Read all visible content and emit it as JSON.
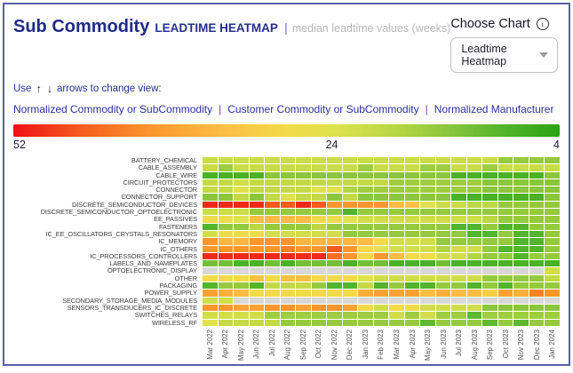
{
  "header": {
    "title": "Sub Commodity",
    "subtitle": "LEADTIME HEATMAP",
    "separator": "|",
    "description": "median leadtime values (weeks)",
    "choose_chart_label": "Choose Chart",
    "dropdown_value": "Leadtime Heatmap"
  },
  "icons": {
    "info_glyph": "i"
  },
  "view_controls": {
    "hint_prefix": "Use",
    "up_arrow": "↑",
    "down_arrow": "↓",
    "hint_suffix": "arrows to change view:",
    "separator": "|",
    "views": [
      "Normalized Commodity or SubCommodity",
      "Customer Commodity or SubCommodity",
      "Normalized Manufacturer"
    ]
  },
  "colorbar": {
    "min_label": "52",
    "mid_label": "24",
    "max_label": "4"
  },
  "chart_data": {
    "type": "heatmap",
    "title": "Sub Commodity LEADTIME HEATMAP",
    "unit": "median leadtime (weeks)",
    "scale": {
      "worst": 52,
      "mid": 24,
      "best": 4
    },
    "no_data_color": "#d8d8d8",
    "color_stops": [
      {
        "value": 52,
        "color": "#ed1117"
      },
      {
        "value": 46,
        "color": "#f55b1e"
      },
      {
        "value": 40,
        "color": "#f9962c"
      },
      {
        "value": 34,
        "color": "#fbbc43"
      },
      {
        "value": 28,
        "color": "#f2da49"
      },
      {
        "value": 24,
        "color": "#dfe24c"
      },
      {
        "value": 19,
        "color": "#bcd844"
      },
      {
        "value": 14,
        "color": "#8cc63d"
      },
      {
        "value": 9,
        "color": "#53b42d"
      },
      {
        "value": 4,
        "color": "#2aa311"
      }
    ],
    "columns": [
      "Mar 2022",
      "Apr 2022",
      "May 2022",
      "Jun 2022",
      "Jul 2022",
      "Aug 2022",
      "Sep 2022",
      "Oct 2022",
      "Nov 2022",
      "Dec 2022",
      "Jan 2023",
      "Feb 2023",
      "Mar 2023",
      "Apr 2023",
      "May 2023",
      "Jun 2023",
      "Jul 2023",
      "Aug 2023",
      "Sep 2023",
      "Oct 2023",
      "Nov 2023",
      "Dec 2023",
      "Jan 2024"
    ],
    "rows": [
      "BATTERY_CHEMICAL",
      "CABLE_ASSEMBLY",
      "CABLE_WIRE",
      "CIRCUIT_PROTECTORS",
      "CONNECTOR",
      "CONNECTOR_SUPPORT",
      "DISCRETE_SEMICONDUCTOR_DEVICES",
      "DISCRETE_SEMICONDUCTOR_OPTOELECTRONIC",
      "EE_PASSIVES",
      "FASTENERS",
      "IC_EE_OSCILLATORS_CRYSTALS_RESONATORS",
      "IC_MEMORY",
      "IC_OTHERS",
      "IC_PROCESSORS_CONTROLLERS",
      "LABELS_AND_NAMEPLATES",
      "OPTOELECTRONIC_DISPLAY",
      "OTHER",
      "PACKAGING",
      "POWER_SUPPLY",
      "SECONDARY_STORAGE_MEDIA_MODULES",
      "SENSORS_TRANSDUCERS_IC_DISCRETE",
      "SWITCHES_RELAYS",
      "WIRELESS_RF"
    ],
    "values": [
      [
        21,
        21,
        21,
        21,
        21,
        21,
        21,
        21,
        21,
        21,
        21,
        21,
        21,
        21,
        21,
        21,
        21,
        21,
        21,
        15,
        15,
        15,
        15
      ],
      [
        21,
        16,
        21,
        21,
        21,
        21,
        21,
        21,
        21,
        21,
        16,
        21,
        21,
        21,
        16,
        16,
        21,
        21,
        16,
        21,
        21,
        21,
        21
      ],
      [
        8,
        8,
        8,
        8,
        14,
        14,
        14,
        14,
        14,
        14,
        14,
        14,
        14,
        14,
        14,
        14,
        8,
        8,
        8,
        8,
        8,
        8,
        14
      ],
      [
        20,
        20,
        22,
        20,
        20,
        20,
        20,
        20,
        20,
        20,
        20,
        20,
        16,
        16,
        16,
        16,
        16,
        16,
        14,
        14,
        14,
        14,
        14
      ],
      [
        20,
        20,
        24,
        20,
        20,
        20,
        20,
        24,
        24,
        18,
        16,
        16,
        16,
        16,
        16,
        16,
        16,
        16,
        14,
        14,
        14,
        14,
        14
      ],
      [
        14,
        14,
        20,
        14,
        20,
        24,
        20,
        20,
        14,
        20,
        14,
        14,
        14,
        14,
        14,
        14,
        8,
        8,
        8,
        8,
        8,
        8,
        14
      ],
      [
        50,
        50,
        50,
        50,
        46,
        46,
        50,
        46,
        40,
        40,
        40,
        40,
        34,
        33,
        24,
        21,
        21,
        19,
        19,
        15,
        15,
        15,
        15
      ],
      [
        21,
        21,
        21,
        15,
        15,
        15,
        15,
        15,
        15,
        9,
        15,
        15,
        15,
        15,
        15,
        15,
        15,
        15,
        15,
        15,
        15,
        15,
        15
      ],
      [
        27,
        27,
        24,
        34,
        34,
        34,
        34,
        27,
        27,
        24,
        22,
        22,
        22,
        22,
        22,
        22,
        22,
        22,
        19,
        15,
        15,
        15,
        15
      ],
      [
        9,
        15,
        15,
        19,
        15,
        15,
        15,
        19,
        15,
        15,
        15,
        15,
        15,
        15,
        15,
        15,
        9,
        9,
        15,
        9,
        9,
        15,
        15
      ],
      [
        22,
        27,
        27,
        27,
        22,
        22,
        22,
        22,
        22,
        15,
        15,
        15,
        15,
        15,
        15,
        15,
        15,
        9,
        9,
        15,
        9,
        9,
        15
      ],
      [
        40,
        35,
        35,
        40,
        40,
        40,
        35,
        35,
        35,
        35,
        34,
        28,
        22,
        22,
        22,
        15,
        15,
        15,
        15,
        15,
        9,
        9,
        15
      ],
      [
        40,
        40,
        40,
        40,
        40,
        42,
        40,
        40,
        46,
        40,
        28,
        24,
        22,
        22,
        22,
        18,
        22,
        22,
        15,
        9,
        9,
        9,
        15
      ],
      [
        50,
        50,
        50,
        50,
        50,
        50,
        50,
        50,
        44,
        40,
        28,
        40,
        34,
        28,
        28,
        22,
        22,
        18,
        15,
        15,
        9,
        15,
        15
      ],
      [
        12,
        12,
        8,
        8,
        12,
        8,
        12,
        12,
        12,
        8,
        12,
        12,
        8,
        8,
        8,
        12,
        8,
        8,
        8,
        8,
        8,
        8,
        8
      ],
      [
        null,
        null,
        null,
        null,
        null,
        null,
        null,
        null,
        null,
        null,
        null,
        null,
        null,
        null,
        null,
        null,
        null,
        null,
        null,
        null,
        null,
        null,
        22
      ],
      [
        28,
        28,
        28,
        33,
        28,
        33,
        33,
        28,
        28,
        28,
        24,
        22,
        22,
        22,
        22,
        22,
        22,
        22,
        15,
        15,
        15,
        15,
        20
      ],
      [
        9,
        15,
        15,
        9,
        20,
        20,
        20,
        15,
        9,
        9,
        20,
        9,
        15,
        9,
        9,
        15,
        15,
        9,
        15,
        9,
        15,
        15,
        15
      ],
      [
        38,
        36,
        34,
        28,
        28,
        28,
        28,
        28,
        28,
        28,
        36,
        38,
        38,
        38,
        34,
        36,
        34,
        34,
        30,
        38,
        36,
        42,
        40
      ],
      [
        22,
        22,
        null,
        null,
        null,
        null,
        null,
        null,
        null,
        null,
        null,
        null,
        null,
        null,
        null,
        null,
        null,
        null,
        null,
        null,
        null,
        null,
        null
      ],
      [
        40,
        40,
        38,
        38,
        40,
        40,
        38,
        40,
        40,
        38,
        28,
        22,
        28,
        28,
        22,
        22,
        22,
        22,
        14,
        14,
        14,
        14,
        14
      ],
      [
        22,
        22,
        22,
        22,
        16,
        16,
        16,
        16,
        16,
        16,
        16,
        16,
        22,
        16,
        22,
        16,
        16,
        10,
        16,
        16,
        16,
        16,
        16
      ],
      [
        24,
        20,
        20,
        20,
        20,
        15,
        15,
        15,
        15,
        15,
        15,
        15,
        15,
        15,
        10,
        15,
        15,
        15,
        10,
        15,
        10,
        15,
        15
      ]
    ]
  }
}
